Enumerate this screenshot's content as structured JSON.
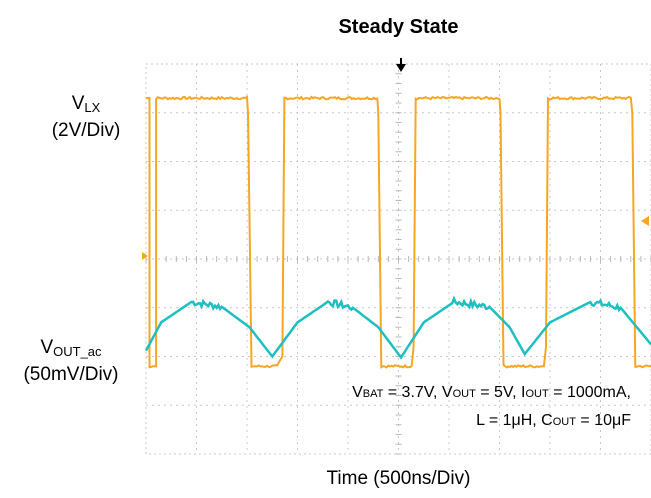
{
  "title": "Steady State",
  "xlabel": "Time (500ns/Div)",
  "ch1": {
    "name": "V",
    "sub": "LX",
    "scale": "(2V/Div)",
    "color": "#f5a623"
  },
  "ch2": {
    "name": "V",
    "sub": "OUT_ac",
    "scale": "(50mV/Div)",
    "color": "#1fbfbf"
  },
  "conditions": {
    "vbat_v": "V",
    "vbat_sub": "BAT",
    "vbat_val": " = 3.7V, ",
    "vout_v": "V",
    "vout_sub": "OUT",
    "vout_val": " = 5V, ",
    "iout_i": "I",
    "iout_sub": "OUT",
    "iout_val": " = 1000mA,",
    "l_text": "L = 1μH, ",
    "cout_c": "C",
    "cout_sub": "OUT",
    "cout_val": " = 10μF"
  },
  "chart_data": {
    "type": "line",
    "x_unit": "div",
    "xlim": [
      0,
      10
    ],
    "grid": true,
    "series": [
      {
        "name": "VLX",
        "unit": "div",
        "points": [
          [
            0,
            3.3
          ],
          [
            0.07,
            3.3
          ],
          [
            0.07,
            -2.2
          ],
          [
            0.2,
            -2.2
          ],
          [
            0.2,
            3.3
          ],
          [
            2.0,
            3.3
          ],
          [
            2.02,
            3.0
          ],
          [
            2.09,
            -2.2
          ],
          [
            2.2,
            -2.2
          ],
          [
            2.6,
            -2.2
          ],
          [
            2.7,
            -2.0
          ],
          [
            2.74,
            3.3
          ],
          [
            4.58,
            3.3
          ],
          [
            4.6,
            3.0
          ],
          [
            4.66,
            -2.2
          ],
          [
            5.0,
            -2.2
          ],
          [
            5.26,
            -2.2
          ],
          [
            5.3,
            -1.8
          ],
          [
            5.34,
            3.3
          ],
          [
            7.0,
            3.3
          ],
          [
            7.02,
            3.0
          ],
          [
            7.08,
            -2.2
          ],
          [
            7.4,
            -2.2
          ],
          [
            7.88,
            -2.2
          ],
          [
            7.92,
            -1.8
          ],
          [
            7.96,
            3.3
          ],
          [
            9.6,
            3.3
          ],
          [
            9.63,
            3.0
          ],
          [
            9.69,
            -2.2
          ],
          [
            10,
            -2.2
          ]
        ]
      },
      {
        "name": "VOUT_ac",
        "unit": "div",
        "points": [
          [
            0,
            -1.88
          ],
          [
            0.3,
            -1.3
          ],
          [
            0.9,
            -0.88
          ],
          [
            1.5,
            -0.98
          ],
          [
            2.05,
            -1.4
          ],
          [
            2.5,
            -2.0
          ],
          [
            3.0,
            -1.3
          ],
          [
            3.6,
            -0.88
          ],
          [
            4.1,
            -1.0
          ],
          [
            4.6,
            -1.4
          ],
          [
            5.05,
            -2.02
          ],
          [
            5.5,
            -1.3
          ],
          [
            6.1,
            -0.88
          ],
          [
            6.8,
            -0.98
          ],
          [
            7.2,
            -1.4
          ],
          [
            7.5,
            -1.95
          ],
          [
            8.0,
            -1.3
          ],
          [
            8.8,
            -0.88
          ],
          [
            9.4,
            -1.0
          ],
          [
            10,
            -1.75
          ]
        ]
      }
    ]
  }
}
